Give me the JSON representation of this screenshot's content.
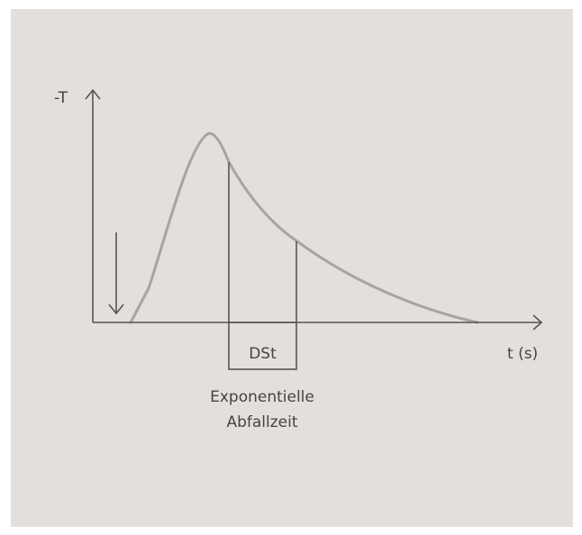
{
  "diagram": {
    "y_axis_label": "-T",
    "x_axis_label": "t (s)",
    "interval_label": "DSt",
    "caption_line1": "Exponentielle",
    "caption_line2": "Abfallzeit"
  },
  "colors": {
    "background": "#e3dfdc",
    "axis": "#555555",
    "curve": "#aaa39f",
    "text": "#444444"
  }
}
